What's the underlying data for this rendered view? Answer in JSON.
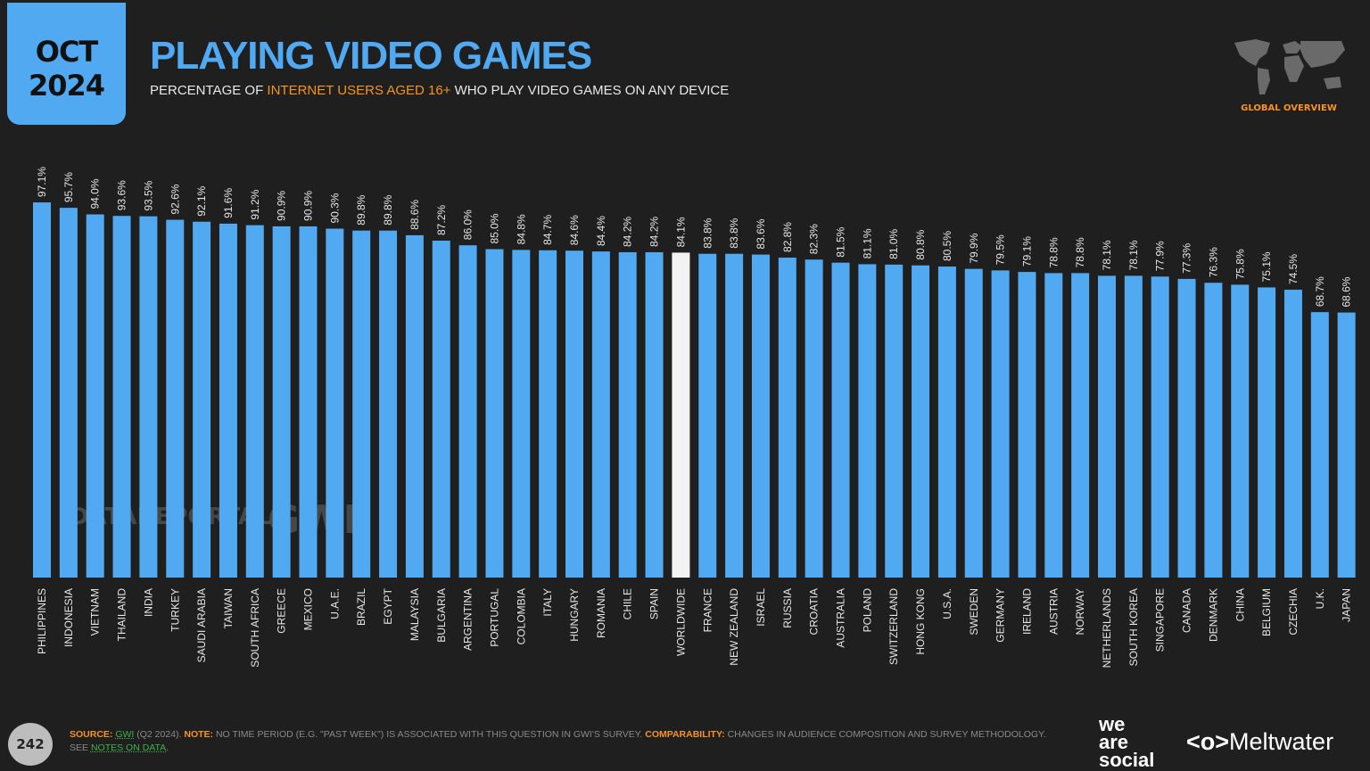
{
  "header": {
    "month": "OCT",
    "year": "2024",
    "title": "PLAYING VIDEO GAMES",
    "subtitle_pre": "PERCENTAGE OF ",
    "subtitle_highlight": "INTERNET USERS AGED 16+",
    "subtitle_post": " WHO PLAY VIDEO GAMES ON ANY DEVICE",
    "region_label": "GLOBAL OVERVIEW"
  },
  "watermarks": {
    "datareportal": "DATAREPORTAL",
    "gwi": "GWI."
  },
  "colors": {
    "bar": "#51a9f2",
    "highlight_bar": "#f2f2f2",
    "accent": "#f7931e",
    "background": "#1f1f1f"
  },
  "chart_data": {
    "type": "bar",
    "title": "PLAYING VIDEO GAMES",
    "ylim": [
      0,
      100
    ],
    "grid": false,
    "highlight": "WORLDWIDE",
    "categories": [
      "PHILIPPINES",
      "INDONESIA",
      "VIETNAM",
      "THAILAND",
      "INDIA",
      "TURKEY",
      "SAUDI ARABIA",
      "TAIWAN",
      "SOUTH AFRICA",
      "GREECE",
      "MEXICO",
      "U.A.E.",
      "BRAZIL",
      "EGYPT",
      "MALAYSIA",
      "BULGARIA",
      "ARGENTINA",
      "PORTUGAL",
      "COLOMBIA",
      "ITALY",
      "HUNGARY",
      "ROMANIA",
      "CHILE",
      "SPAIN",
      "WORLDWIDE",
      "FRANCE",
      "NEW ZEALAND",
      "ISRAEL",
      "RUSSIA",
      "CROATIA",
      "AUSTRALIA",
      "POLAND",
      "SWITZERLAND",
      "HONG KONG",
      "U.S.A.",
      "SWEDEN",
      "GERMANY",
      "IRELAND",
      "AUSTRIA",
      "NORWAY",
      "NETHERLANDS",
      "SOUTH KOREA",
      "SINGAPORE",
      "CANADA",
      "DENMARK",
      "CHINA",
      "BELGIUM",
      "CZECHIA",
      "U.K.",
      "JAPAN"
    ],
    "values": [
      97.1,
      95.7,
      94.0,
      93.6,
      93.5,
      92.6,
      92.1,
      91.6,
      91.2,
      90.9,
      90.9,
      90.3,
      89.8,
      89.8,
      88.6,
      87.2,
      86.0,
      85.0,
      84.8,
      84.7,
      84.6,
      84.4,
      84.2,
      84.2,
      84.1,
      83.8,
      83.8,
      83.6,
      82.8,
      82.3,
      81.5,
      81.1,
      81.0,
      80.8,
      80.5,
      79.9,
      79.5,
      79.1,
      78.8,
      78.8,
      78.1,
      78.1,
      77.9,
      77.3,
      76.3,
      75.8,
      75.1,
      74.5,
      68.7,
      68.6
    ],
    "labels": [
      "97.1%",
      "95.7%",
      "94.0%",
      "93.6%",
      "93.5%",
      "92.6%",
      "92.1%",
      "91.6%",
      "91.2%",
      "90.9%",
      "90.9%",
      "90.3%",
      "89.8%",
      "89.8%",
      "88.6%",
      "87.2%",
      "86.0%",
      "85.0%",
      "84.8%",
      "84.7%",
      "84.6%",
      "84.4%",
      "84.2%",
      "84.2%",
      "84.1%",
      "83.8%",
      "83.8%",
      "83.6%",
      "82.8%",
      "82.3%",
      "81.5%",
      "81.1%",
      "81.0%",
      "80.8%",
      "80.5%",
      "79.9%",
      "79.5%",
      "79.1%",
      "78.8%",
      "78.8%",
      "78.1%",
      "78.1%",
      "77.9%",
      "77.3%",
      "76.3%",
      "75.8%",
      "75.1%",
      "74.5%",
      "68.7%",
      "68.6%"
    ]
  },
  "footer": {
    "page_number": "242",
    "source_label": "SOURCE:",
    "source_link": "GWI",
    "source_text": " (Q2 2024). ",
    "note_label": "NOTE:",
    "note_text": " NO TIME PERIOD (E.G. \"PAST WEEK\") IS ASSOCIATED WITH THIS QUESTION IN GWI'S SURVEY. ",
    "comparability_label": "COMPARABILITY:",
    "comparability_text": " CHANGES IN AUDIENCE COMPOSITION AND SURVEY METHODOLOGY. SEE ",
    "notes_link": "NOTES ON DATA",
    "end": ".",
    "brand1": "we are social",
    "brand2": "Meltwater"
  }
}
